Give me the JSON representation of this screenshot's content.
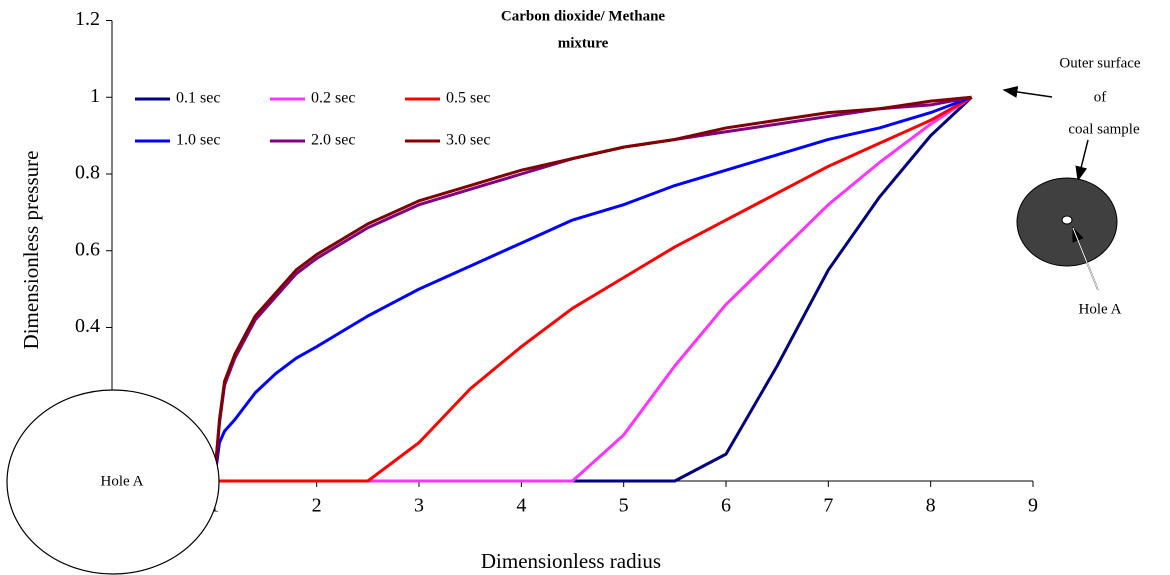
{
  "chart_data": {
    "type": "line",
    "title": [
      "Carbon dioxide/ Methane",
      "mixture"
    ],
    "x_label": "Dimensionless radius",
    "y_label": "Dimensionless pressure",
    "xlim": [
      0,
      9
    ],
    "ylim": [
      0,
      1.2
    ],
    "xticks": [
      1,
      2,
      3,
      4,
      5,
      6,
      7,
      8,
      9
    ],
    "yticks": [
      0.4,
      0.6,
      0.8,
      1,
      1.2
    ],
    "x": [
      1,
      1.05,
      1.1,
      1.2,
      1.4,
      1.6,
      1.8,
      2,
      2.5,
      3,
      3.5,
      4,
      4.5,
      5,
      5.5,
      6,
      6.5,
      7,
      7.5,
      8,
      8.4
    ],
    "series": [
      {
        "name": "0.1 sec",
        "color": "#000080",
        "values": [
          0,
          0,
          0,
          0,
          0,
          0,
          0,
          0,
          0,
          0,
          0,
          0,
          0,
          0,
          0,
          0.07,
          0.3,
          0.55,
          0.74,
          0.9,
          1
        ]
      },
      {
        "name": "0.2 sec",
        "color": "#ff33ff",
        "values": [
          0,
          0,
          0,
          0,
          0,
          0,
          0,
          0,
          0,
          0,
          0,
          0,
          0,
          0.12,
          0.3,
          0.46,
          0.59,
          0.72,
          0.83,
          0.93,
          1
        ]
      },
      {
        "name": "0.5 sec",
        "color": "#ff0000",
        "values": [
          0,
          0,
          0,
          0,
          0,
          0,
          0,
          0,
          0,
          0.1,
          0.24,
          0.35,
          0.45,
          0.53,
          0.61,
          0.68,
          0.75,
          0.82,
          0.88,
          0.94,
          1
        ]
      },
      {
        "name": "1.0 sec",
        "color": "#0000ff",
        "values": [
          0,
          0.1,
          0.13,
          0.16,
          0.23,
          0.28,
          0.32,
          0.35,
          0.43,
          0.5,
          0.56,
          0.62,
          0.68,
          0.72,
          0.77,
          0.81,
          0.85,
          0.89,
          0.92,
          0.96,
          1
        ]
      },
      {
        "name": "2.0 sec",
        "color": "#800080",
        "values": [
          0,
          0.15,
          0.25,
          0.32,
          0.42,
          0.48,
          0.54,
          0.58,
          0.66,
          0.72,
          0.76,
          0.8,
          0.84,
          0.87,
          0.89,
          0.91,
          0.93,
          0.95,
          0.97,
          0.98,
          1
        ]
      },
      {
        "name": "3.0 sec",
        "color": "#800000",
        "values": [
          0,
          0.16,
          0.26,
          0.33,
          0.43,
          0.49,
          0.55,
          0.59,
          0.67,
          0.73,
          0.77,
          0.81,
          0.84,
          0.87,
          0.89,
          0.92,
          0.94,
          0.96,
          0.97,
          0.99,
          1
        ]
      }
    ],
    "annotations": {
      "outer_surface": [
        "Outer surface",
        "of",
        "coal sample"
      ],
      "hole_right": "Hole A",
      "hole_left": "Hole  A"
    }
  }
}
